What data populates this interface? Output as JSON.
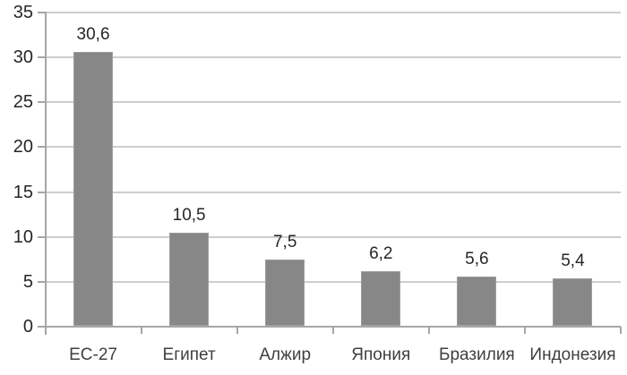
{
  "chart_data": {
    "type": "bar",
    "categories": [
      "ЕС-27",
      "Египет",
      "Алжир",
      "Япония",
      "Бразилия",
      "Индонезия"
    ],
    "values": [
      30.6,
      10.5,
      7.5,
      6.2,
      5.6,
      5.4
    ],
    "value_labels": [
      "30,6",
      "10,5",
      "7,5",
      "6,2",
      "5,6",
      "5,4"
    ],
    "title": "",
    "xlabel": "",
    "ylabel": "",
    "ylim": [
      0,
      35
    ],
    "ytick_step": 5,
    "ytick_labels": [
      "0",
      "5",
      "10",
      "15",
      "20",
      "25",
      "30",
      "35"
    ],
    "grid": true,
    "legend": false,
    "colors": {
      "bar": "#878787",
      "bar_edge": "#9e9e9e",
      "gridline": "#cdcdcd",
      "axis": "#a6a6a6",
      "value_label_text": "#262626",
      "category_text": "#3f3f3f",
      "ytick_text": "#262626",
      "background": "#ffffff"
    }
  }
}
